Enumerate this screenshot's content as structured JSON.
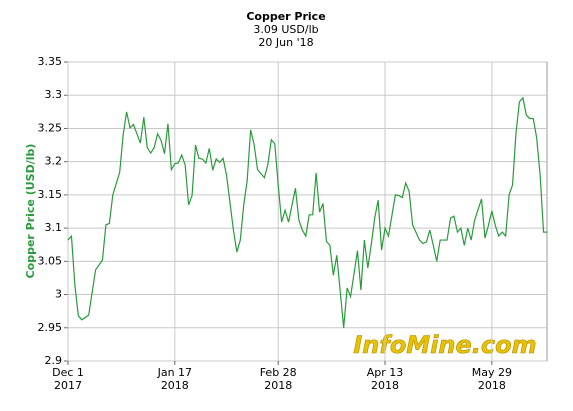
{
  "chart_data": {
    "type": "line",
    "title": "Copper Price",
    "subtitle": "3.09 USD/lb",
    "date": "20 Jun '18",
    "y_label": "Copper Price (USD/lb)",
    "watermark": "InfoMine.com",
    "grid": true,
    "xlim": [
      0,
      139
    ],
    "xticks": [
      {
        "value": 0,
        "label": [
          "Dec 1",
          "2017"
        ]
      },
      {
        "value": 31,
        "label": [
          "Jan 17",
          "2018"
        ]
      },
      {
        "value": 61,
        "label": [
          "Feb 28",
          "2018"
        ]
      },
      {
        "value": 92,
        "label": [
          "Apr 13",
          "2018"
        ]
      },
      {
        "value": 123,
        "label": [
          "May 29",
          "2018"
        ]
      }
    ],
    "ylim": [
      2.9,
      3.35
    ],
    "yticks": [
      2.9,
      2.95,
      3,
      3.05,
      3.1,
      3.15,
      3.2,
      3.25,
      3.3,
      3.35
    ],
    "x": [
      0,
      1,
      2,
      3,
      4,
      6,
      8,
      10,
      11,
      12,
      13,
      15,
      16,
      17,
      18,
      19,
      21,
      22,
      23,
      24,
      25,
      26,
      27,
      28,
      29,
      30,
      31,
      32,
      33,
      34,
      35,
      36,
      37,
      38,
      39,
      40,
      41,
      42,
      43,
      44,
      45,
      46,
      48,
      49,
      50,
      51,
      52,
      53,
      54,
      55,
      57,
      58,
      59,
      60,
      61,
      62,
      63,
      64,
      66,
      67,
      68,
      69,
      70,
      71,
      72,
      73,
      74,
      75,
      76,
      77,
      78,
      80,
      81,
      82,
      84,
      85,
      86,
      87,
      88,
      89,
      90,
      91,
      92,
      93,
      95,
      96,
      97,
      98,
      99,
      100,
      102,
      103,
      104,
      105,
      106,
      107,
      108,
      110,
      111,
      112,
      113,
      114,
      115,
      116,
      117,
      118,
      120,
      121,
      122,
      123,
      124,
      125,
      126,
      127,
      128,
      129,
      130,
      131,
      132,
      133,
      134,
      135,
      136,
      137,
      138,
      139
    ],
    "series": [
      {
        "name": "Copper Price",
        "color": "#2a9a3c",
        "values": [
          3.082,
          3.088,
          3.014,
          2.968,
          2.962,
          2.969,
          3.037,
          3.052,
          3.105,
          3.107,
          3.15,
          3.184,
          3.24,
          3.275,
          3.251,
          3.256,
          3.228,
          3.267,
          3.221,
          3.213,
          3.221,
          3.242,
          3.232,
          3.212,
          3.257,
          3.188,
          3.197,
          3.198,
          3.21,
          3.195,
          3.135,
          3.149,
          3.225,
          3.205,
          3.204,
          3.198,
          3.22,
          3.187,
          3.204,
          3.199,
          3.205,
          3.18,
          3.097,
          3.064,
          3.082,
          3.135,
          3.172,
          3.248,
          3.226,
          3.188,
          3.176,
          3.196,
          3.233,
          3.227,
          3.165,
          3.109,
          3.127,
          3.109,
          3.16,
          3.112,
          3.097,
          3.088,
          3.12,
          3.12,
          3.183,
          3.124,
          3.137,
          3.08,
          3.074,
          3.029,
          3.059,
          2.95,
          3.01,
          2.997,
          3.066,
          3.007,
          3.082,
          3.04,
          3.075,
          3.115,
          3.142,
          3.067,
          3.1,
          3.088,
          3.15,
          3.149,
          3.146,
          3.168,
          3.155,
          3.105,
          3.082,
          3.077,
          3.079,
          3.097,
          3.074,
          3.05,
          3.082,
          3.082,
          3.115,
          3.118,
          3.094,
          3.1,
          3.074,
          3.1,
          3.082,
          3.112,
          3.144,
          3.085,
          3.104,
          3.126,
          3.104,
          3.088,
          3.094,
          3.088,
          3.15,
          3.165,
          3.243,
          3.29,
          3.296,
          3.27,
          3.265,
          3.265,
          3.236,
          3.18,
          3.094,
          3.094
        ]
      }
    ]
  }
}
